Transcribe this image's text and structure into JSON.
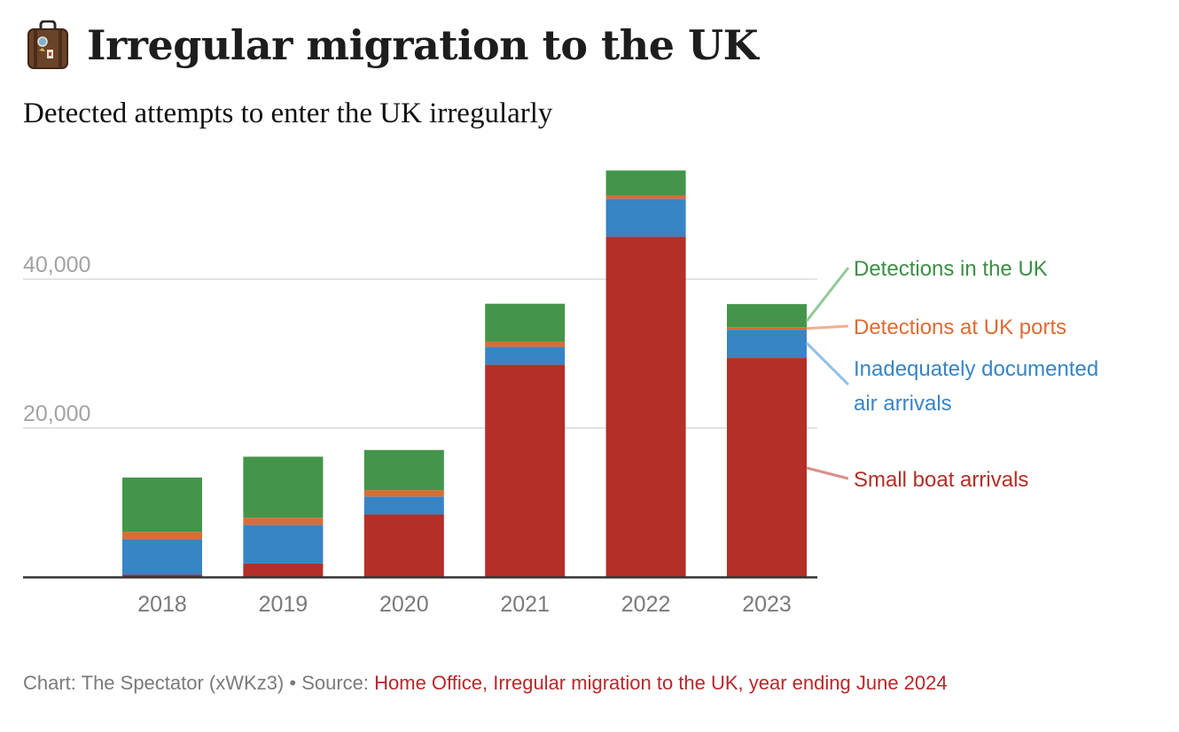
{
  "header": {
    "icon": "suitcase-icon",
    "title": "Irregular migration to the UK",
    "subtitle": "Detected attempts to enter the UK irregularly"
  },
  "footer": {
    "credit": "Chart: The Spectator (xWKz3)",
    "separator": " • ",
    "source_label": "Source: ",
    "source_text": "Home Office, Irregular migration to the UK, year ending June 2024"
  },
  "chart_data": {
    "type": "bar",
    "stacked": true,
    "title": "Irregular migration to the UK",
    "subtitle": "Detected attempts to enter the UK irregularly",
    "xlabel": "",
    "ylabel": "",
    "categories": [
      "2018",
      "2019",
      "2020",
      "2021",
      "2022",
      "2023"
    ],
    "ylim": [
      0,
      55000
    ],
    "yticks": [
      20000,
      40000
    ],
    "ytick_labels": [
      "20,000",
      "40,000"
    ],
    "grid": true,
    "legend_position": "right (direct labels)",
    "series": [
      {
        "name": "Small boat arrivals",
        "color": "#b32f27",
        "values": [
          300,
          1800,
          8400,
          28500,
          45700,
          29400
        ]
      },
      {
        "name": "Inadequately documented air arrivals",
        "color": "#3784c6",
        "values": [
          4800,
          5200,
          2400,
          2400,
          5100,
          3800
        ]
      },
      {
        "name": "Detections at UK ports",
        "color": "#dd6b33",
        "values": [
          950,
          950,
          850,
          700,
          400,
          350
        ]
      },
      {
        "name": "Detections in the UK",
        "color": "#43954a",
        "values": [
          7300,
          8200,
          5400,
          5100,
          3400,
          3100
        ]
      }
    ],
    "legend_labels": [
      {
        "series": "Detections in the UK",
        "lines": [
          "Detections in the UK"
        ],
        "color": "#3c8f44",
        "line_color": "#93c99a"
      },
      {
        "series": "Detections at UK ports",
        "lines": [
          "Detections at UK ports"
        ],
        "color": "#dd6b33",
        "line_color": "#f0b08f"
      },
      {
        "series": "Inadequately documented air arrivals",
        "lines": [
          "Inadequately documented",
          "air arrivals"
        ],
        "color": "#3784c6",
        "line_color": "#8fc0e3"
      },
      {
        "series": "Small boat arrivals",
        "lines": [
          "Small boat arrivals"
        ],
        "color": "#b32f27",
        "line_color": "#d88f8b"
      }
    ]
  }
}
